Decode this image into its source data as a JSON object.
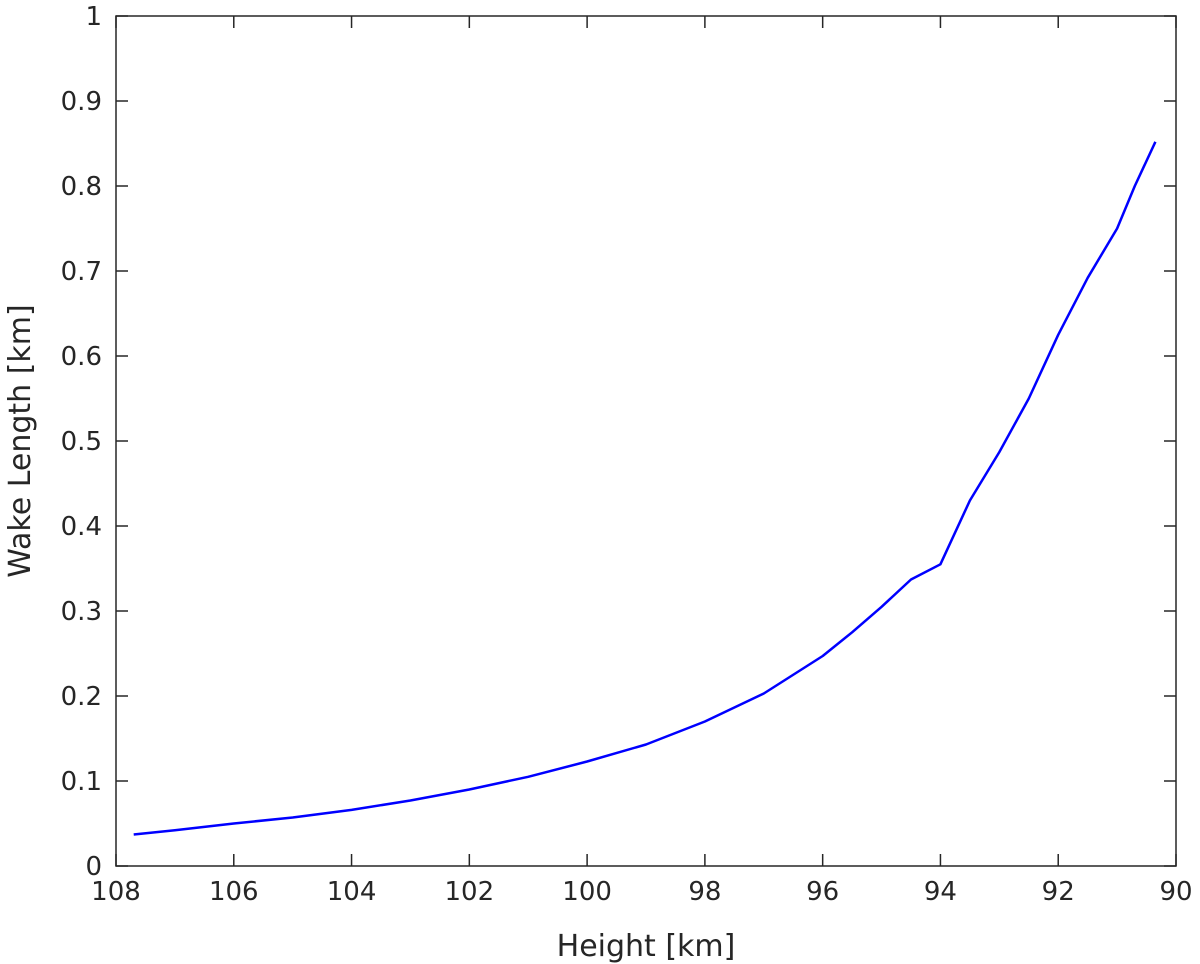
{
  "chart_data": {
    "type": "line",
    "xlabel": "Height [km]",
    "ylabel": "Wake Length [km]",
    "x_reversed": true,
    "xlim": [
      108,
      90
    ],
    "ylim": [
      0,
      1
    ],
    "xticks": [
      108,
      106,
      104,
      102,
      100,
      98,
      96,
      94,
      92,
      90
    ],
    "yticks": [
      0,
      0.1,
      0.2,
      0.3,
      0.4,
      0.5,
      0.6,
      0.7,
      0.8,
      0.9,
      1
    ],
    "grid": false,
    "series": [
      {
        "color": "#0000ff",
        "x": [
          107.7,
          107.0,
          106.0,
          105.0,
          104.0,
          103.0,
          102.0,
          101.0,
          100.0,
          99.0,
          98.0,
          97.0,
          96.0,
          95.5,
          95.0,
          94.5,
          94.0,
          93.5,
          93.0,
          92.5,
          92.0,
          91.5,
          91.0,
          90.7,
          90.35
        ],
        "y": [
          0.037,
          0.042,
          0.05,
          0.057,
          0.066,
          0.077,
          0.09,
          0.105,
          0.123,
          0.143,
          0.17,
          0.203,
          0.247,
          0.275,
          0.305,
          0.337,
          0.355,
          0.43,
          0.487,
          0.55,
          0.625,
          0.692,
          0.75,
          0.8,
          0.852
        ]
      }
    ]
  }
}
